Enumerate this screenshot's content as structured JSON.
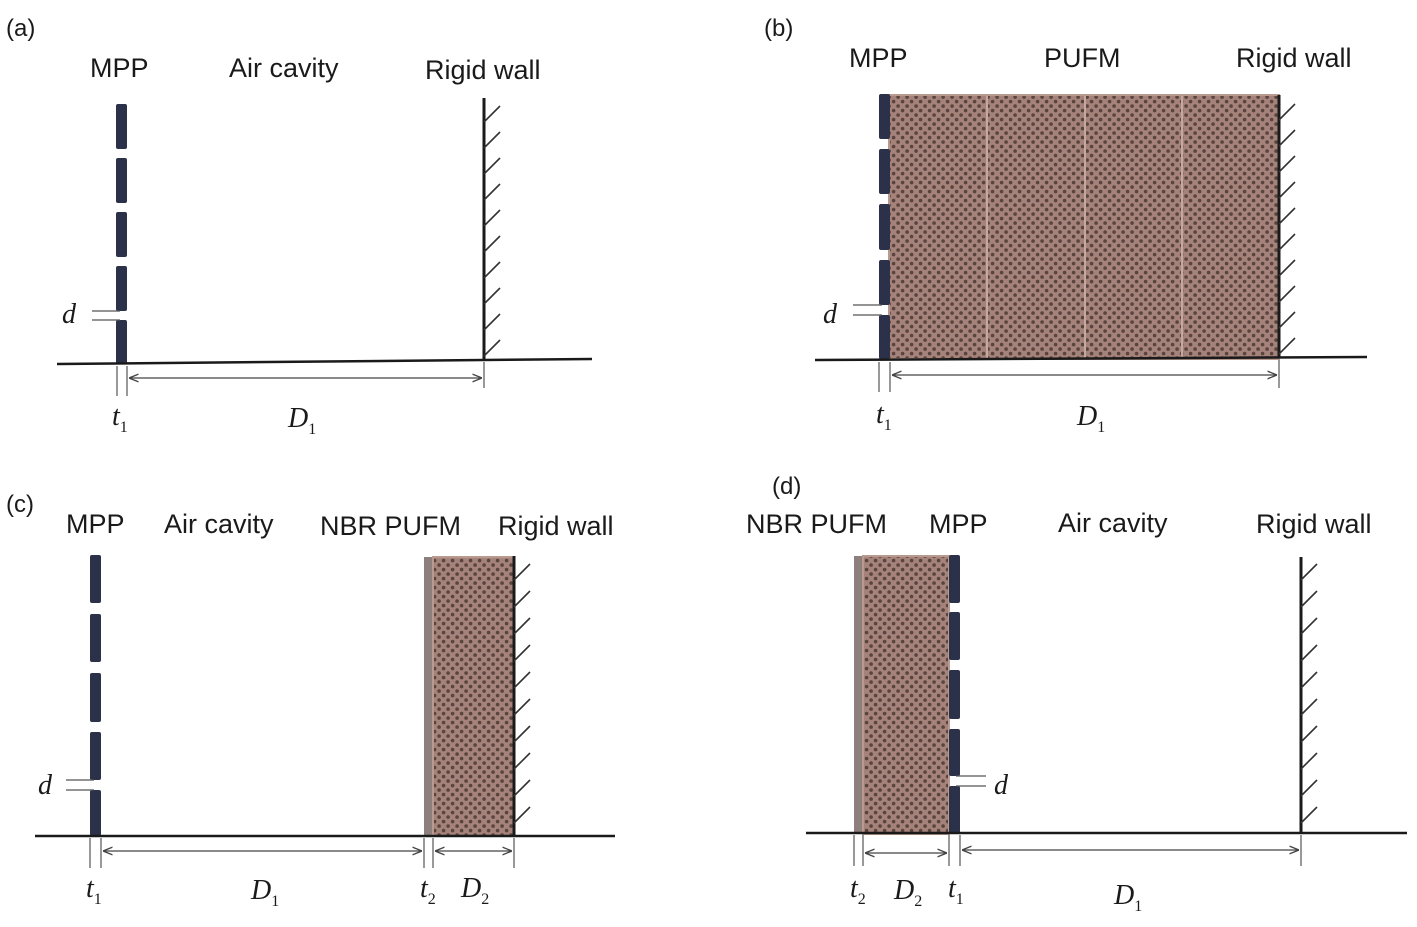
{
  "panels": [
    {
      "id": "a",
      "tag": "(a)",
      "labels": {
        "mpp": "MPP",
        "cavity": "Air cavity",
        "wall": "Rigid wall"
      },
      "dims": {
        "d": "d",
        "t1": "t",
        "t1_sub": "1",
        "D1": "D",
        "D1_sub": "1"
      }
    },
    {
      "id": "b",
      "tag": "(b)",
      "labels": {
        "mpp": "MPP",
        "foam": "PUFM",
        "wall": "Rigid wall"
      },
      "dims": {
        "d": "d",
        "t1": "t",
        "t1_sub": "1",
        "D1": "D",
        "D1_sub": "1"
      }
    },
    {
      "id": "c",
      "tag": "(c)",
      "labels": {
        "mpp": "MPP",
        "cavity": "Air cavity",
        "foam": "NBR PUFM",
        "wall": "Rigid wall"
      },
      "dims": {
        "d": "d",
        "t1": "t",
        "t1_sub": "1",
        "D1": "D",
        "D1_sub": "1",
        "t2": "t",
        "t2_sub": "2",
        "D2": "D",
        "D2_sub": "2"
      }
    },
    {
      "id": "d",
      "tag": "(d)",
      "labels": {
        "foam": "NBR PUFM",
        "mpp": "MPP",
        "cavity": "Air cavity",
        "wall": "Rigid wall"
      },
      "dims": {
        "d": "d",
        "t1": "t",
        "t1_sub": "1",
        "D1": "D",
        "D1_sub": "1",
        "t2": "t",
        "t2_sub": "2",
        "D2": "D",
        "D2_sub": "2"
      }
    }
  ],
  "colors": {
    "mpp_plate": "#2b3148",
    "foam_fill": "#a5837a",
    "foam_pore": "#5a4440",
    "facing_layer": "#8d7f7b",
    "line": "#1a1a1a"
  }
}
